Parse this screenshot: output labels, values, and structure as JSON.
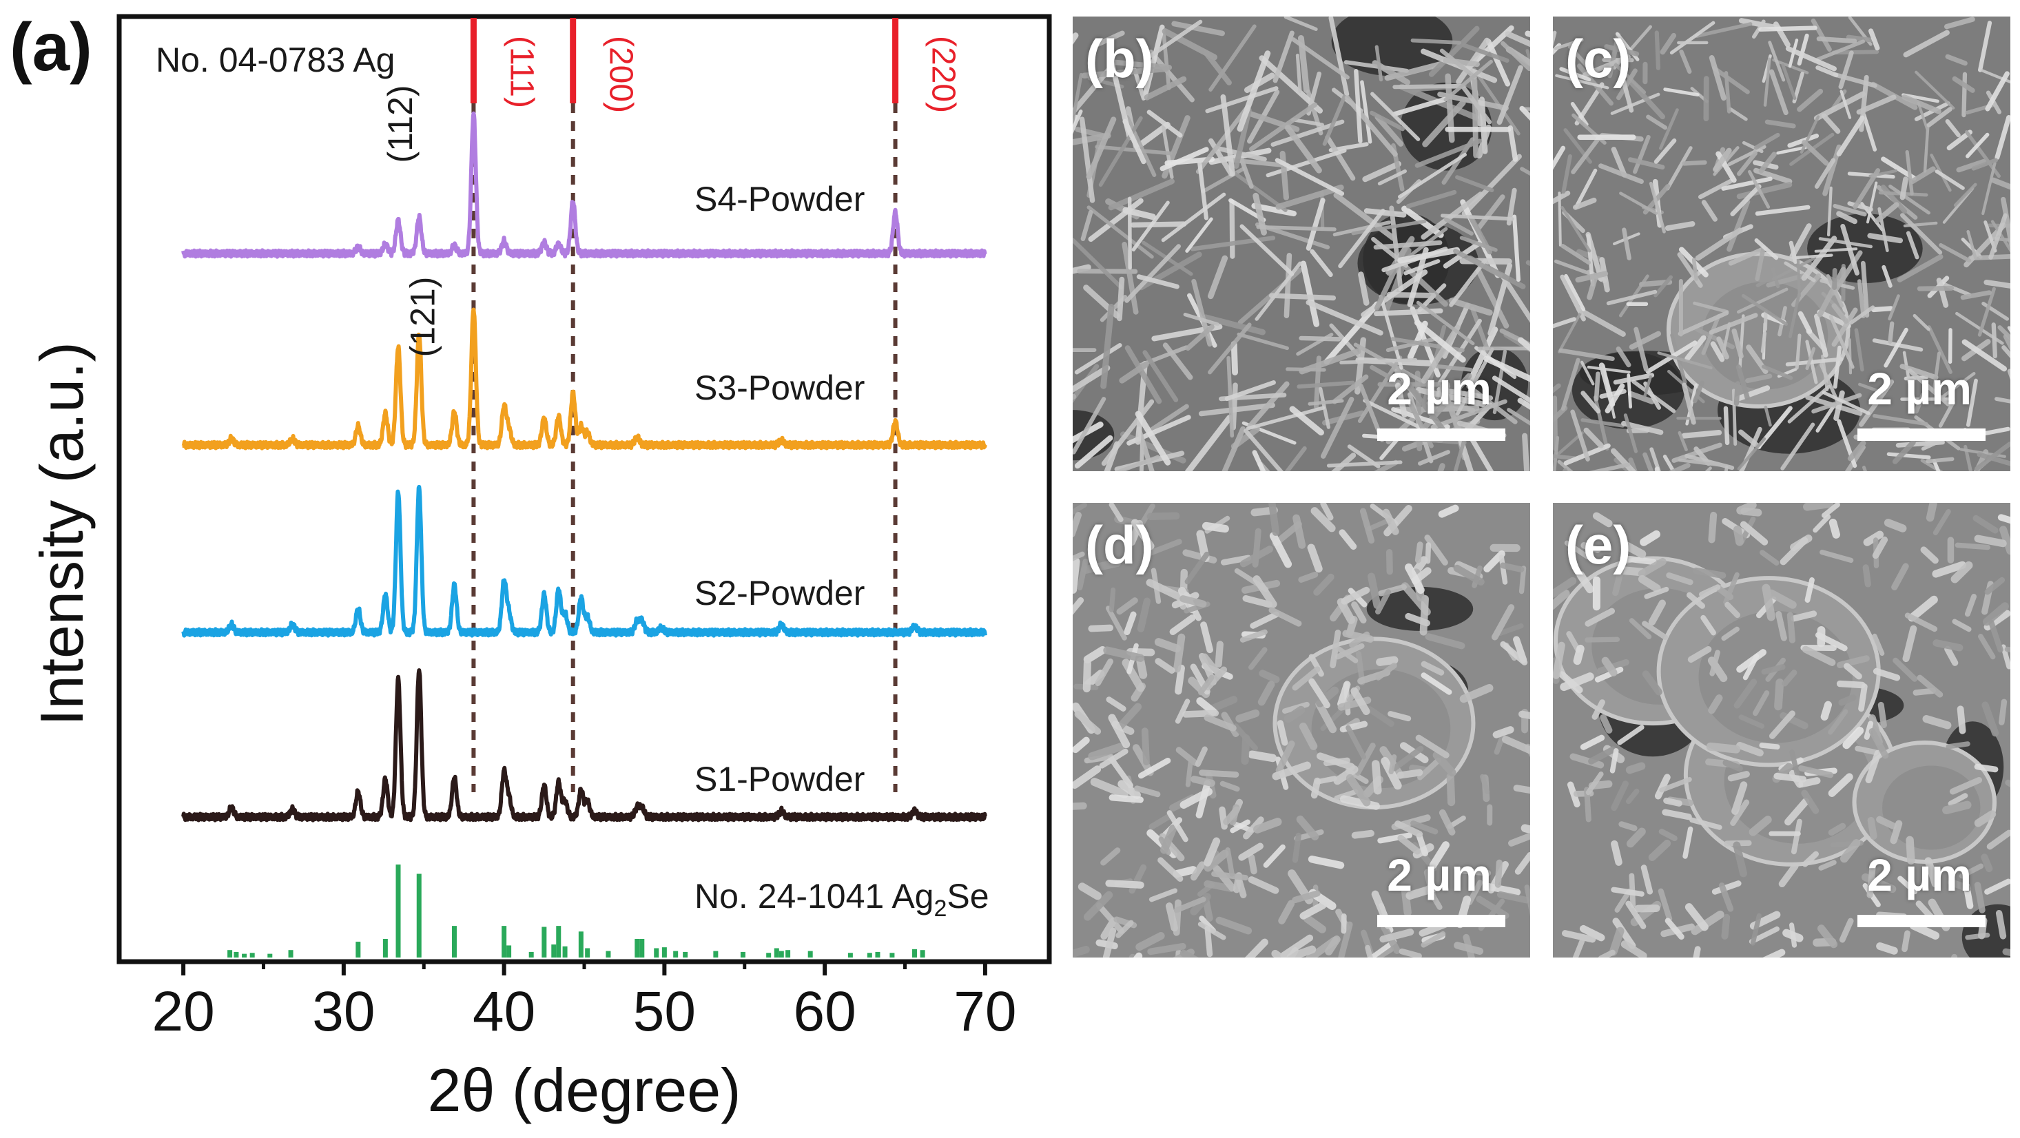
{
  "figure_label": "(a)",
  "chart_data": {
    "type": "line",
    "title": "",
    "xlabel": "2θ (degree)",
    "ylabel": "Intensity (a.u.)",
    "xlim": [
      16,
      74
    ],
    "xticks": [
      20,
      30,
      40,
      50,
      60,
      70
    ],
    "xtick_labels": [
      "20",
      "30",
      "40",
      "50",
      "60",
      "70"
    ],
    "grid": false,
    "reference_ag": {
      "label": "No. 04-0783 Ag",
      "color": "#e8202a",
      "peaks": [
        {
          "x": 38.1,
          "hkl": "(111)"
        },
        {
          "x": 44.3,
          "hkl": "(200)"
        },
        {
          "x": 64.4,
          "hkl": "(220)"
        }
      ]
    },
    "reference_ag2se": {
      "label_prefix": "No. 24-1041 Ag",
      "label_sub": "2",
      "label_suffix": "Se",
      "color": "#2aa95a",
      "sticks": [
        [
          22.9,
          0.08
        ],
        [
          23.3,
          0.06
        ],
        [
          23.8,
          0.04
        ],
        [
          24.3,
          0.05
        ],
        [
          25.4,
          0.04
        ],
        [
          26.7,
          0.08
        ],
        [
          30.9,
          0.17
        ],
        [
          32.6,
          0.2
        ],
        [
          33.4,
          1.0
        ],
        [
          34.7,
          0.9
        ],
        [
          36.9,
          0.34
        ],
        [
          40.0,
          0.34
        ],
        [
          40.3,
          0.13
        ],
        [
          41.7,
          0.06
        ],
        [
          42.5,
          0.33
        ],
        [
          43.1,
          0.14
        ],
        [
          43.4,
          0.34
        ],
        [
          43.8,
          0.12
        ],
        [
          44.8,
          0.28
        ],
        [
          45.2,
          0.1
        ],
        [
          46.5,
          0.07
        ],
        [
          48.3,
          0.2
        ],
        [
          48.6,
          0.2
        ],
        [
          49.5,
          0.1
        ],
        [
          50.0,
          0.11
        ],
        [
          50.7,
          0.07
        ],
        [
          51.3,
          0.06
        ],
        [
          53.2,
          0.07
        ],
        [
          54.9,
          0.06
        ],
        [
          56.5,
          0.05
        ],
        [
          57.0,
          0.1
        ],
        [
          57.3,
          0.07
        ],
        [
          57.7,
          0.08
        ],
        [
          59.1,
          0.07
        ],
        [
          61.6,
          0.05
        ],
        [
          62.8,
          0.05
        ],
        [
          63.3,
          0.06
        ],
        [
          64.2,
          0.05
        ],
        [
          65.6,
          0.09
        ],
        [
          66.1,
          0.08
        ]
      ]
    },
    "hkl_labels": [
      {
        "text": "(112)",
        "x": 33.4
      },
      {
        "text": "(121)",
        "x": 34.7
      }
    ],
    "series": [
      {
        "name": "S1-Powder",
        "color": "#2b1a19",
        "peaks": [
          [
            23.0,
            0.06
          ],
          [
            26.8,
            0.05
          ],
          [
            30.9,
            0.16
          ],
          [
            32.6,
            0.24
          ],
          [
            33.4,
            0.87
          ],
          [
            34.7,
            0.93
          ],
          [
            36.9,
            0.25
          ],
          [
            40.0,
            0.28
          ],
          [
            40.3,
            0.12
          ],
          [
            42.5,
            0.2
          ],
          [
            43.4,
            0.22
          ],
          [
            43.8,
            0.1
          ],
          [
            44.8,
            0.17
          ],
          [
            45.2,
            0.1
          ],
          [
            48.3,
            0.06
          ],
          [
            48.6,
            0.06
          ],
          [
            57.3,
            0.04
          ],
          [
            65.6,
            0.04
          ]
        ]
      },
      {
        "name": "S2-Powder",
        "color": "#1aa3e3",
        "peaks": [
          [
            23.0,
            0.05
          ],
          [
            26.8,
            0.05
          ],
          [
            30.9,
            0.15
          ],
          [
            32.6,
            0.24
          ],
          [
            33.4,
            0.89
          ],
          [
            34.7,
            0.91
          ],
          [
            36.9,
            0.3
          ],
          [
            40.0,
            0.32
          ],
          [
            40.3,
            0.12
          ],
          [
            42.5,
            0.24
          ],
          [
            43.4,
            0.27
          ],
          [
            43.8,
            0.12
          ],
          [
            44.8,
            0.22
          ],
          [
            45.2,
            0.1
          ],
          [
            48.3,
            0.07
          ],
          [
            48.6,
            0.07
          ],
          [
            49.8,
            0.03
          ],
          [
            57.3,
            0.05
          ],
          [
            65.6,
            0.04
          ]
        ]
      },
      {
        "name": "S3-Powder",
        "color": "#f2a01e",
        "peaks": [
          [
            23.0,
            0.04
          ],
          [
            26.8,
            0.04
          ],
          [
            30.9,
            0.12
          ],
          [
            32.6,
            0.2
          ],
          [
            33.4,
            0.62
          ],
          [
            34.7,
            0.7
          ],
          [
            36.9,
            0.21
          ],
          [
            38.1,
            0.86
          ],
          [
            40.0,
            0.24
          ],
          [
            40.3,
            0.1
          ],
          [
            42.5,
            0.17
          ],
          [
            43.4,
            0.18
          ],
          [
            44.3,
            0.33
          ],
          [
            44.8,
            0.12
          ],
          [
            45.2,
            0.08
          ],
          [
            48.3,
            0.05
          ],
          [
            57.3,
            0.03
          ],
          [
            64.4,
            0.15
          ]
        ]
      },
      {
        "name": "S4-Powder",
        "color": "#b07de0",
        "peaks": [
          [
            30.9,
            0.04
          ],
          [
            32.6,
            0.06
          ],
          [
            33.4,
            0.21
          ],
          [
            34.7,
            0.23
          ],
          [
            36.9,
            0.05
          ],
          [
            38.1,
            0.88
          ],
          [
            40.0,
            0.08
          ],
          [
            42.5,
            0.07
          ],
          [
            43.4,
            0.06
          ],
          [
            44.3,
            0.33
          ],
          [
            64.4,
            0.26
          ]
        ]
      }
    ]
  },
  "sem_panels": [
    {
      "label": "(b)",
      "scale": "2 µm"
    },
    {
      "label": "(c)",
      "scale": "2 µm"
    },
    {
      "label": "(d)",
      "scale": "2 µm"
    },
    {
      "label": "(e)",
      "scale": "2 µm"
    }
  ]
}
